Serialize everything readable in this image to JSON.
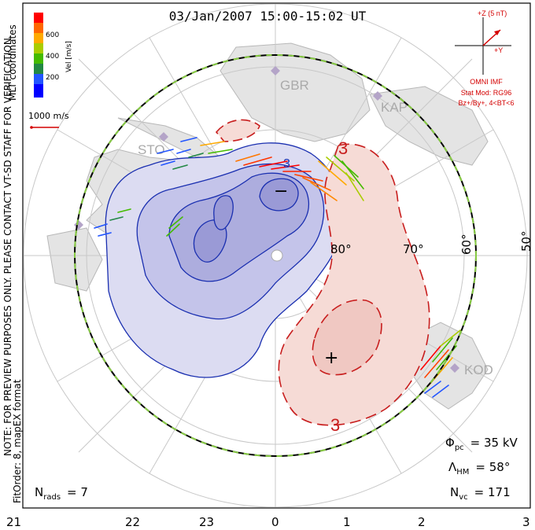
{
  "title": "03/Jan/2007 15:00-15:02 UT",
  "colorbar": {
    "ticks": [
      "600",
      "400",
      "200"
    ],
    "label": "Vel [m/s]",
    "colors": [
      "#ff0000",
      "#ff6600",
      "#ffaa00",
      "#aacc00",
      "#44bb00",
      "#228844",
      "#2255ff",
      "#0000ff"
    ]
  },
  "coord_label": "MLT coordinates",
  "scale_vector_label": "1000 m/s",
  "side_note": "NOTE: FOR PREVIEW PURPOSES ONLY. PLEASE CONTACT VT-SD STAFF FOR VERIFICATION.",
  "fit_order": "FitOrder: 8, mapEX format",
  "imf": {
    "z_label": "+Z (5 nT)",
    "y_label": "+Y",
    "source": "OMNI IMF",
    "stat_mod": "Stat Mod: RG96",
    "condition": "Bz+/By+, 4<BT<6"
  },
  "stations": [
    {
      "name": "GBR"
    },
    {
      "name": "KAP"
    },
    {
      "name": "STO"
    },
    {
      "name": "KOD"
    }
  ],
  "lat_labels": [
    "80°",
    "70°",
    "60°",
    "50°"
  ],
  "contour_labels": {
    "neg_sign": "−",
    "pos_sign": "+",
    "neg_value": "3",
    "pos_value_a": "3",
    "pos_value_b": "3"
  },
  "stats": {
    "phi_label": "Φ",
    "phi_sub": "pc",
    "phi_value": "= 35 kV",
    "lambda_label": "Λ",
    "lambda_sub": "HM",
    "lambda_value": "= 58°",
    "nvc_label": "N",
    "nvc_sub": "vc",
    "nvc_value": "= 171",
    "nrads_label": "N",
    "nrads_sub": "rads",
    "nrads_value": "= 7"
  },
  "mlt_ticks": [
    "21",
    "22",
    "23",
    "0",
    "1",
    "2",
    "3"
  ],
  "colors": {
    "negative_fill": "#c8c8ee",
    "positive_fill": "#f6d6d0",
    "negative_line": "#1a2fb0",
    "positive_line": "#c81e1e",
    "boundary_dash": "#88cc44",
    "grid": "#c8c8c8",
    "land": "#d8d8d8"
  }
}
